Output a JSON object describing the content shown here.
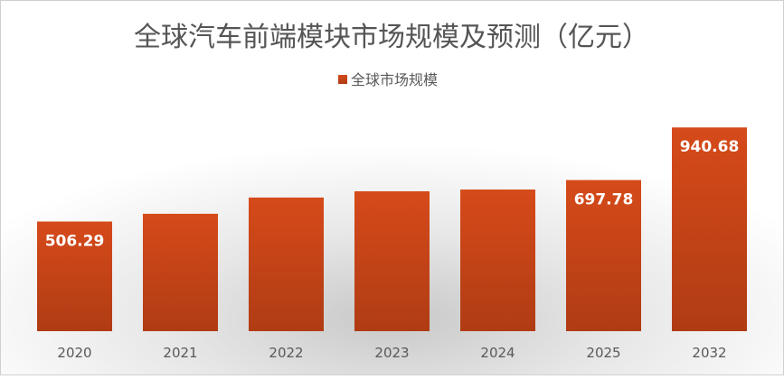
{
  "chart_data": {
    "type": "bar",
    "title": "全球汽车前端模块市场规模及预测（亿元）",
    "legend": {
      "position": "top",
      "entries": [
        "全球市场规模"
      ]
    },
    "categories": [
      "2020",
      "2021",
      "2022",
      "2023",
      "2024",
      "2025",
      "2032"
    ],
    "series": [
      {
        "name": "全球市场规模",
        "values": [
          506.29,
          542,
          617,
          646,
          654,
          697.78,
          940.68
        ],
        "data_labels": [
          "506.29",
          null,
          null,
          null,
          null,
          "697.78",
          "940.68"
        ]
      }
    ],
    "ylim": [
      0,
      1000
    ],
    "grid": false,
    "y_axis_visible": false,
    "colors": {
      "bar_top": "#d64a1a",
      "bar_bottom": "#b03c14",
      "label": "#ffffff",
      "title": "#555555"
    }
  }
}
